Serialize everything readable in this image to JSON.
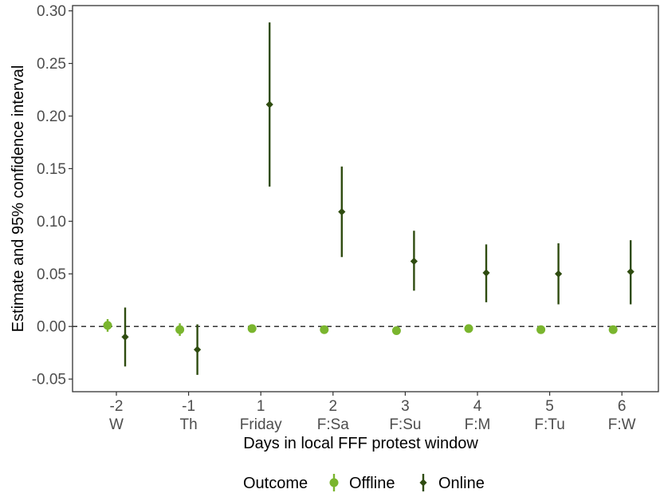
{
  "chart_data": {
    "type": "scatter",
    "subtype": "point-range (estimate with 95% CI)",
    "xlabel": "Days in local FFF protest window",
    "ylabel": "Estimate and 95% confidence interval",
    "ylim": [
      -0.062,
      0.305
    ],
    "yticks": [
      "0.30",
      "0.25",
      "0.20",
      "0.15",
      "0.10",
      "0.05",
      "0.00",
      "-0.05"
    ],
    "ytick_values": [
      0.3,
      0.25,
      0.2,
      0.15,
      0.1,
      0.05,
      0.0,
      -0.05
    ],
    "categories": [
      {
        "top": "-2",
        "bottom": "W"
      },
      {
        "top": "-1",
        "bottom": "Th"
      },
      {
        "top": "1",
        "bottom": "Friday"
      },
      {
        "top": "2",
        "bottom": "F:Sa"
      },
      {
        "top": "3",
        "bottom": "F:Su"
      },
      {
        "top": "4",
        "bottom": "F:M"
      },
      {
        "top": "5",
        "bottom": "F:Tu"
      },
      {
        "top": "6",
        "bottom": "F:W"
      }
    ],
    "reference_line": {
      "y": 0.0,
      "style": "dashed"
    },
    "grid": false,
    "legend": {
      "title": "Outcome",
      "position": "bottom"
    },
    "series": [
      {
        "name": "Offline",
        "color": "#7ab52e",
        "marker": "circle",
        "estimates": [
          0.001,
          -0.003,
          -0.002,
          -0.003,
          -0.004,
          -0.002,
          -0.003,
          -0.003
        ],
        "lower": [
          -0.005,
          -0.009,
          -0.004,
          -0.005,
          -0.006,
          -0.004,
          -0.005,
          -0.005
        ],
        "upper": [
          0.007,
          0.003,
          0.0,
          -0.001,
          -0.002,
          0.0,
          -0.001,
          -0.001
        ]
      },
      {
        "name": "Online",
        "color": "#2f4c10",
        "marker": "diamond",
        "estimates": [
          -0.01,
          -0.022,
          0.211,
          0.109,
          0.062,
          0.051,
          0.05,
          0.052
        ],
        "lower": [
          -0.038,
          -0.046,
          0.133,
          0.066,
          0.034,
          0.023,
          0.021,
          0.021
        ],
        "upper": [
          0.018,
          0.002,
          0.289,
          0.152,
          0.091,
          0.078,
          0.079,
          0.082
        ]
      }
    ]
  }
}
